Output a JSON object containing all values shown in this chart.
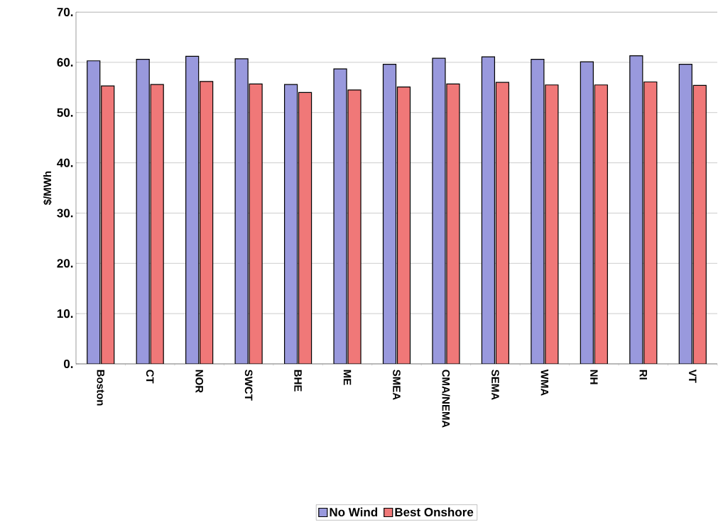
{
  "chart_data": {
    "type": "bar",
    "ylabel": "$/MWh",
    "categories": [
      "Boston",
      "CT",
      "NOR",
      "SWCT",
      "BHE",
      "ME",
      "SMEA",
      "CMA/NEMA",
      "SEMA",
      "WMA",
      "NH",
      "RI",
      "VT"
    ],
    "series": [
      {
        "name": "No Wind",
        "color": "#9999dd",
        "values": [
          60.3,
          60.6,
          61.2,
          60.7,
          55.6,
          58.7,
          59.6,
          60.8,
          61.1,
          60.6,
          60.1,
          61.3,
          59.6
        ]
      },
      {
        "name": "Best Onshore",
        "color": "#f07878",
        "values": [
          55.3,
          55.6,
          56.2,
          55.7,
          54.0,
          54.5,
          55.1,
          55.7,
          56.0,
          55.5,
          55.5,
          56.1,
          55.4
        ]
      }
    ],
    "ylim": [
      0,
      70
    ],
    "yticks": [
      {
        "value": 0,
        "label": "0."
      },
      {
        "value": 10,
        "label": "10."
      },
      {
        "value": 20,
        "label": "20."
      },
      {
        "value": 30,
        "label": "30."
      },
      {
        "value": 40,
        "label": "40."
      },
      {
        "value": 50,
        "label": "50."
      },
      {
        "value": 60,
        "label": "60."
      },
      {
        "value": 70,
        "label": "70."
      }
    ],
    "grid": "y",
    "legend": "bottom"
  }
}
